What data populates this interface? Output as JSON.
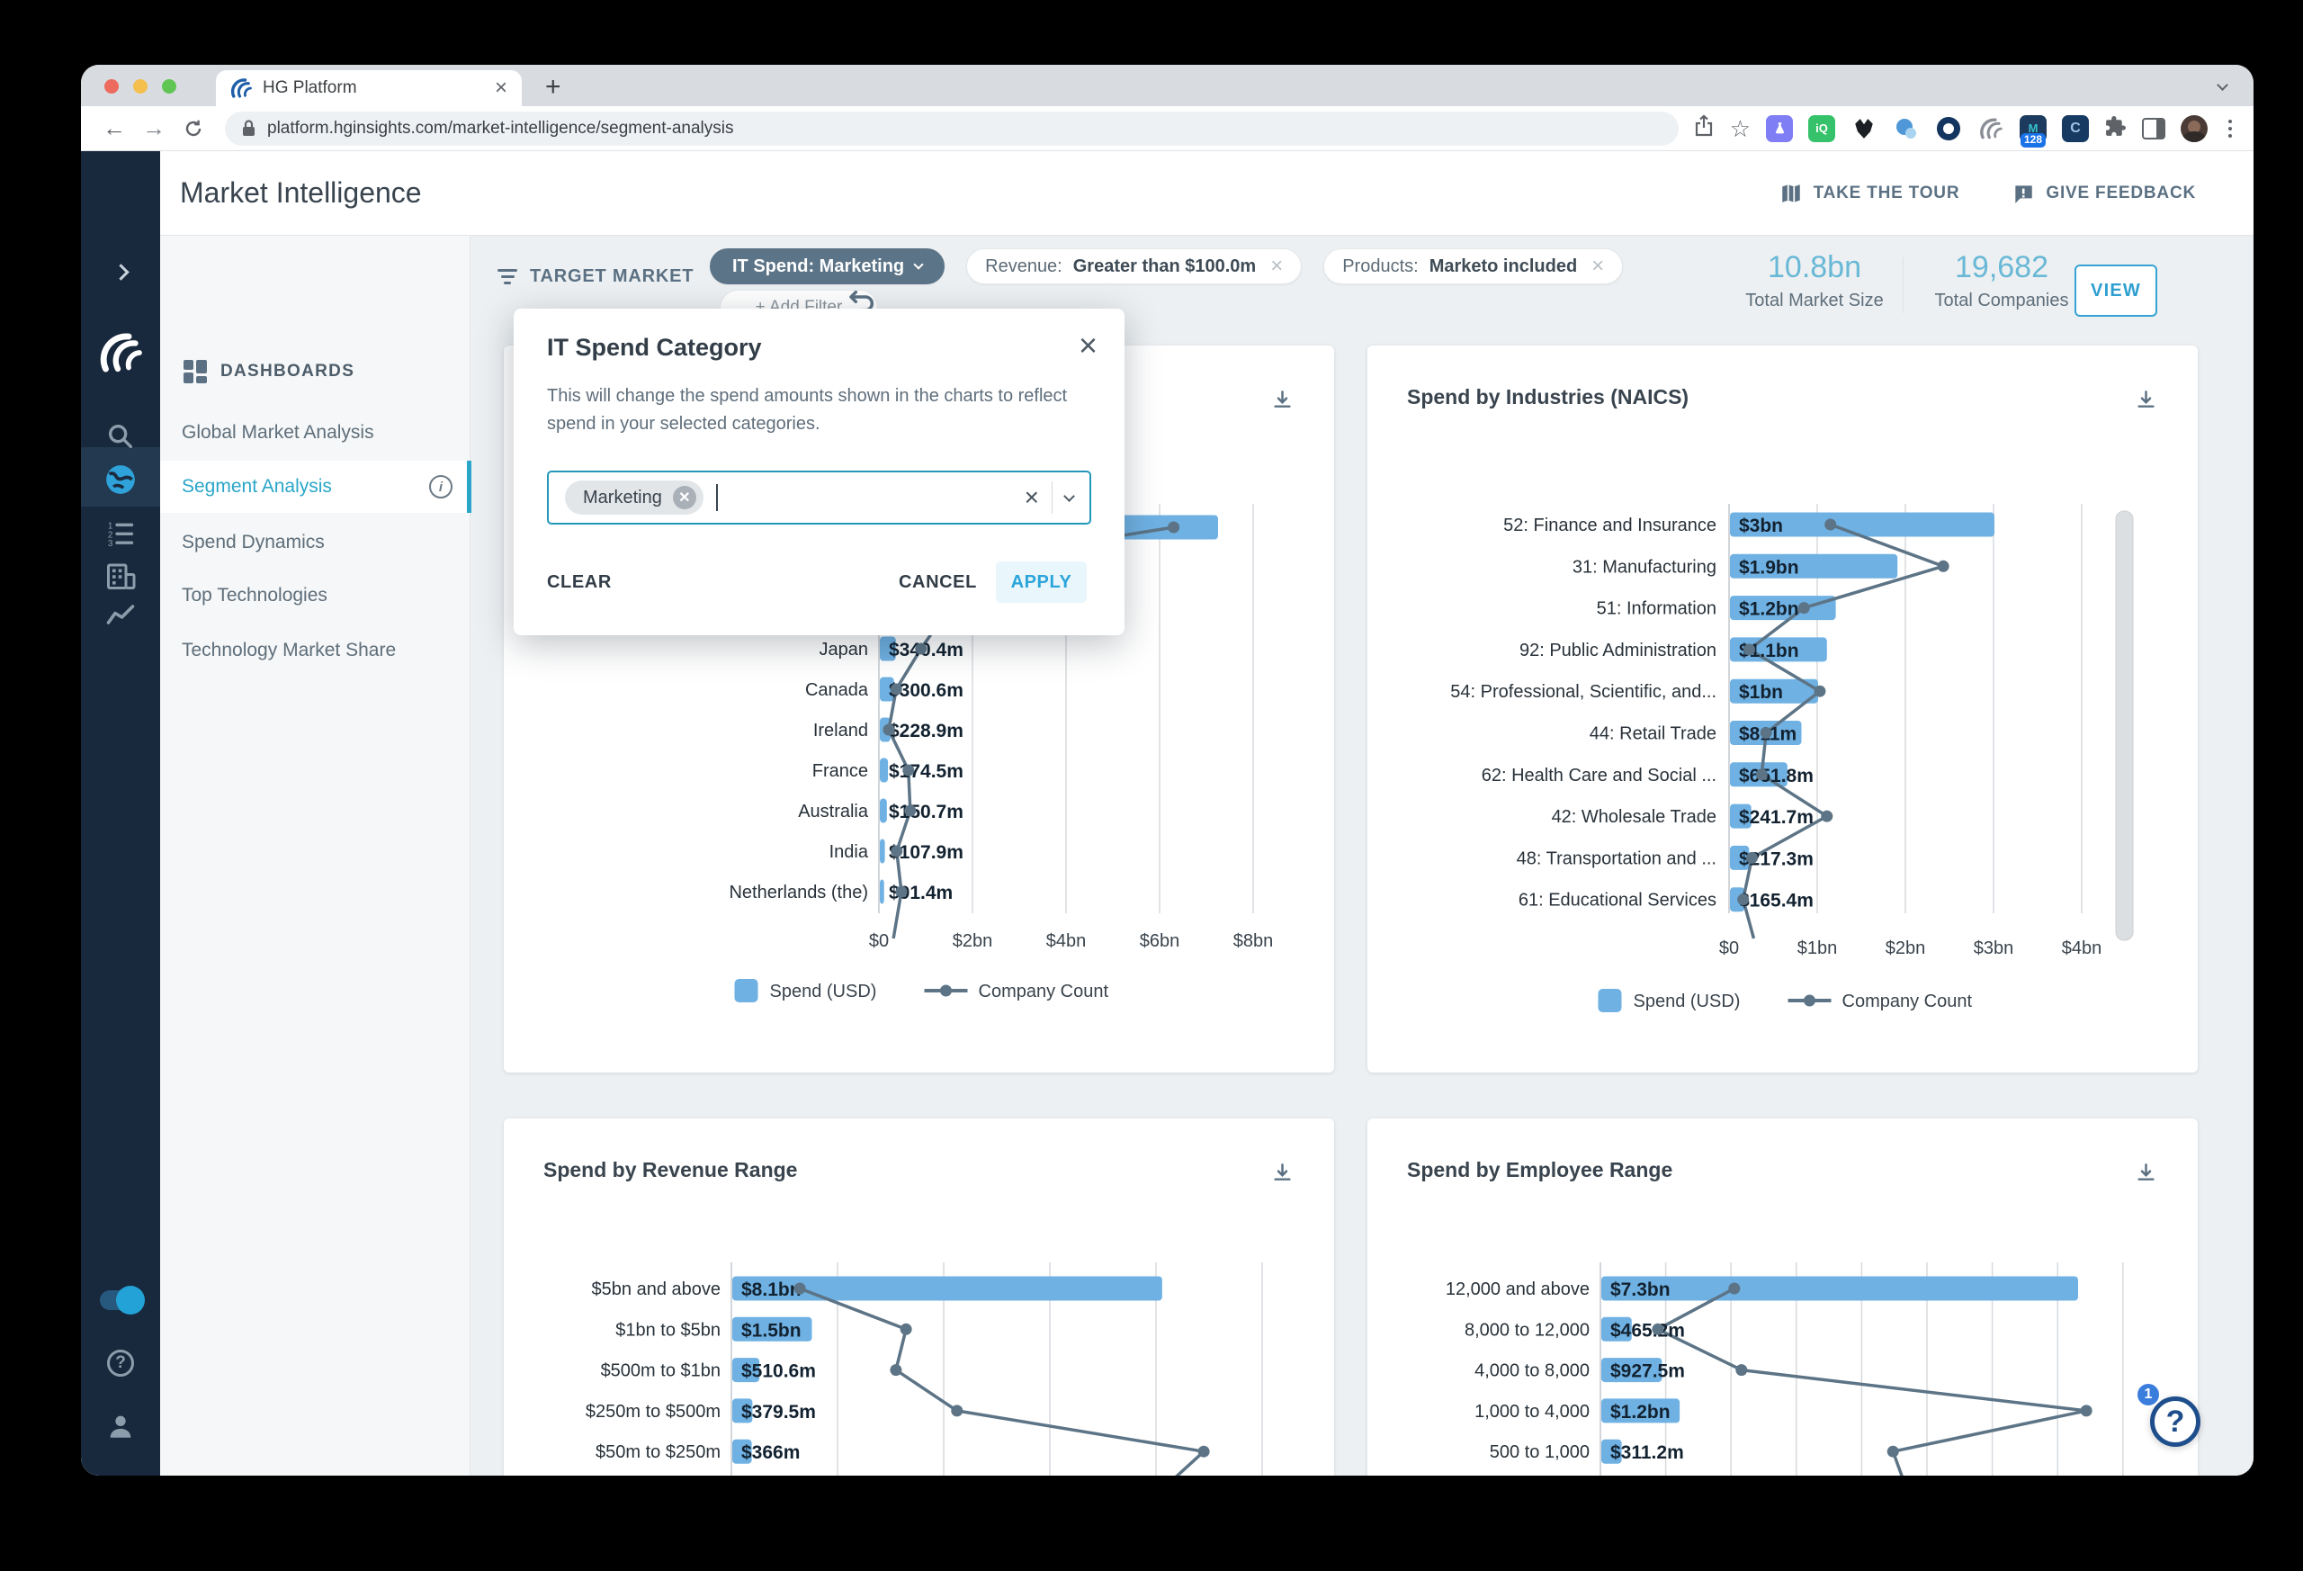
{
  "browser": {
    "tab_title": "HG Platform",
    "url": "platform.hginsights.com/market-intelligence/segment-analysis",
    "extension_badge": "128",
    "toolbar_icons": [
      "share-icon",
      "bookmark-icon",
      "extension-flask-icon",
      "extension-iq-icon",
      "extension-wolf-icon",
      "extension-chat-icon",
      "extension-ring-icon",
      "extension-hg-icon",
      "extension-128-icon",
      "extension-c-icon",
      "extensions-puzzle-icon",
      "side-panel-icon",
      "profile-avatar",
      "overflow-menu-icon"
    ]
  },
  "header": {
    "title": "Market Intelligence",
    "take_the_tour": "TAKE THE TOUR",
    "give_feedback": "GIVE FEEDBACK"
  },
  "rail": {
    "icons": [
      "expand-icon",
      "hg-logo-icon",
      "search-icon",
      "globe-icon",
      "numbered-list-icon",
      "company-icon",
      "trend-icon",
      "toggle-switch",
      "help-icon",
      "user-icon"
    ],
    "active": "globe-icon"
  },
  "sidebar": {
    "heading": "DASHBOARDS",
    "items": [
      {
        "label": "Global Market Analysis",
        "active": false,
        "info": false
      },
      {
        "label": "Segment Analysis",
        "active": true,
        "info": true
      },
      {
        "label": "Spend Dynamics",
        "active": false,
        "info": false
      },
      {
        "label": "Top Technologies",
        "active": false,
        "info": false
      },
      {
        "label": "Technology Market Share",
        "active": false,
        "info": false
      }
    ]
  },
  "filter_bar": {
    "target_market_label": "TARGET MARKET",
    "chips": [
      {
        "text": "IT Spend: Marketing",
        "variant": "dark",
        "trailing": "chevron"
      },
      {
        "prefix": "Revenue:",
        "value": "Greater than $100.0m",
        "variant": "light",
        "trailing": "close"
      },
      {
        "prefix": "Products:",
        "value": "Marketo included",
        "variant": "light",
        "trailing": "close"
      }
    ],
    "add_filter_label": "+ Add Filter",
    "stats": [
      {
        "value": "10.8bn",
        "label": "Total Market Size"
      },
      {
        "value": "19,682",
        "label": "Total Companies"
      }
    ],
    "view_button": "VIEW"
  },
  "modal": {
    "title": "IT Spend Category",
    "description": "This will change the spend amounts shown in the charts to reflect spend in your selected categories.",
    "selected_chip": "Marketing",
    "clear": "CLEAR",
    "cancel": "CANCEL",
    "apply": "APPLY"
  },
  "help_widget": {
    "badge": "1"
  },
  "colors": {
    "bar_blue": "#6fb1e3",
    "line_slate": "#5c7486",
    "accent_teal": "#29a6c8",
    "action_blue": "#2ba2d6",
    "stat_blue": "#68b8d6",
    "rail_navy": "#18293d"
  },
  "chart_data": [
    {
      "id": "spend-left",
      "type": "bar+line",
      "title": "",
      "legend": [
        "Spend (USD)",
        "Company Count"
      ],
      "x_tick_labels": [
        "$0",
        "$2bn",
        "$4bn",
        "$6bn",
        "$8bn"
      ],
      "grid_ticks_bn": [
        0,
        2,
        4,
        6,
        8
      ],
      "rows": [
        {
          "label": "",
          "value_label": "",
          "spend_m": 7230,
          "count_marker_m": 6300
        },
        {
          "label": "",
          "value_label": "",
          "spend_m": 1400,
          "count_marker_m": 900
        },
        {
          "label": "",
          "value_label": "",
          "spend_m": 800,
          "count_marker_m": 1500
        },
        {
          "label": "Japan",
          "value_label": "$340.4m",
          "spend_m": 340.4,
          "count_marker_m": 900
        },
        {
          "label": "Canada",
          "value_label": "$300.6m",
          "spend_m": 300.6,
          "count_marker_m": 370
        },
        {
          "label": "Ireland",
          "value_label": "$228.9m",
          "spend_m": 228.9,
          "count_marker_m": 210
        },
        {
          "label": "France",
          "value_label": "$174.5m",
          "spend_m": 174.5,
          "count_marker_m": 630
        },
        {
          "label": "Australia",
          "value_label": "$150.7m",
          "spend_m": 150.7,
          "count_marker_m": 670
        },
        {
          "label": "India",
          "value_label": "$107.9m",
          "spend_m": 107.9,
          "count_marker_m": 380
        },
        {
          "label": "Netherlands (the)",
          "value_label": "$91.4m",
          "spend_m": 91.4,
          "count_marker_m": 480
        }
      ],
      "tail_marker_m": 310
    },
    {
      "id": "naics",
      "type": "bar+line",
      "title": "Spend by Industries (NAICS)",
      "legend": [
        "Spend (USD)",
        "Company Count"
      ],
      "x_tick_labels": [
        "$0",
        "$1bn",
        "$2bn",
        "$3bn",
        "$4bn"
      ],
      "grid_ticks_bn": [
        0,
        1,
        2,
        3,
        4
      ],
      "scrollbar": true,
      "rows": [
        {
          "label": "52: Finance and Insurance",
          "value_label": "$3bn",
          "spend_m": 3000,
          "count_marker_m": 1150
        },
        {
          "label": "31: Manufacturing",
          "value_label": "$1.9bn",
          "spend_m": 1900,
          "count_marker_m": 2430
        },
        {
          "label": "51: Information",
          "value_label": "$1.2bn",
          "spend_m": 1200,
          "count_marker_m": 850
        },
        {
          "label": "92: Public Administration",
          "value_label": "$1.1bn",
          "spend_m": 1100,
          "count_marker_m": 230
        },
        {
          "label": "54: Professional, Scientific, and...",
          "value_label": "$1bn",
          "spend_m": 1000,
          "count_marker_m": 1030
        },
        {
          "label": "44: Retail Trade",
          "value_label": "$811m",
          "spend_m": 811,
          "count_marker_m": 420
        },
        {
          "label": "62: Health Care and Social ...",
          "value_label": "$651.8m",
          "spend_m": 651.8,
          "count_marker_m": 370
        },
        {
          "label": "42: Wholesale Trade",
          "value_label": "$241.7m",
          "spend_m": 241.7,
          "count_marker_m": 1110
        },
        {
          "label": "48: Transportation and ...",
          "value_label": "$217.3m",
          "spend_m": 217.3,
          "count_marker_m": 260
        },
        {
          "label": "61: Educational Services",
          "value_label": "$165.4m",
          "spend_m": 165.4,
          "count_marker_m": 160
        }
      ],
      "tail_marker_m": 280
    },
    {
      "id": "revenue",
      "type": "bar+line",
      "title": "Spend by Revenue Range",
      "legend": [
        "Spend (USD)",
        "Company Count"
      ],
      "x_tick_labels": [],
      "grid_ticks_bn": [
        0,
        2,
        4,
        6,
        8,
        10
      ],
      "rows": [
        {
          "label": "$5bn and above",
          "value_label": "$8.1bn",
          "spend_m": 8100,
          "count_marker_m": 1290
        },
        {
          "label": "$1bn to $5bn",
          "value_label": "$1.5bn",
          "spend_m": 1500,
          "count_marker_m": 3290
        },
        {
          "label": "$500m to $1bn",
          "value_label": "$510.6m",
          "spend_m": 510.6,
          "count_marker_m": 3100
        },
        {
          "label": "$250m to $500m",
          "value_label": "$379.5m",
          "spend_m": 379.5,
          "count_marker_m": 4250
        },
        {
          "label": "$50m to $250m",
          "value_label": "$366m",
          "spend_m": 366,
          "count_marker_m": 8900
        }
      ],
      "tail_marker_m": 4860
    },
    {
      "id": "employee",
      "type": "bar+line",
      "title": "Spend by Employee Range",
      "legend": [
        "Spend (USD)",
        "Company Count"
      ],
      "x_tick_labels": [],
      "grid_ticks_bn": [
        0,
        1,
        2,
        3,
        4,
        5,
        6,
        7,
        8
      ],
      "rows": [
        {
          "label": "12,000 and above",
          "value_label": "$7.3bn",
          "spend_m": 7300,
          "count_marker_m": 2050
        },
        {
          "label": "8,000 to 12,000",
          "value_label": "$465.2m",
          "spend_m": 465.2,
          "count_marker_m": 880
        },
        {
          "label": "4,000 to 8,000",
          "value_label": "$927.5m",
          "spend_m": 927.5,
          "count_marker_m": 2160
        },
        {
          "label": "1,000 to 4,000",
          "value_label": "$1.2bn",
          "spend_m": 1200,
          "count_marker_m": 7440
        },
        {
          "label": "500 to 1,000",
          "value_label": "$311.2m",
          "spend_m": 311.2,
          "count_marker_m": 4480
        }
      ],
      "tail_marker_m": 5570
    }
  ]
}
